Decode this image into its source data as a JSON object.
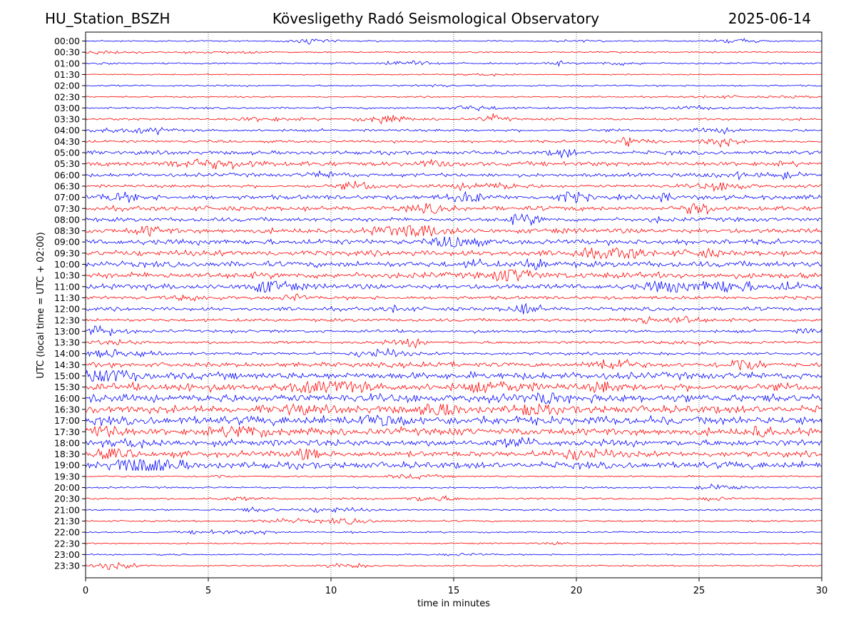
{
  "header": {
    "station": "HU_Station_BSZH",
    "title": "Kövesligethy Radó Seismological Observatory",
    "date": "2025-06-14"
  },
  "colors": {
    "even_trace": "#0000ff",
    "odd_trace": "#ff0000",
    "grid": "#000000",
    "background": "#ffffff"
  },
  "chart_data": {
    "type": "line",
    "title": "Kövesligethy Radó Seismological Observatory",
    "xlabel": "time in minutes",
    "ylabel": "UTC (local time = UTC + 02:00)",
    "xlim": [
      0,
      30
    ],
    "xticks": [
      0,
      5,
      10,
      15,
      20,
      25,
      30
    ],
    "grid": "vertical dotted lines at x ticks",
    "rows": [
      {
        "label": "00:00",
        "amp": 0.5
      },
      {
        "label": "00:30",
        "amp": 0.5
      },
      {
        "label": "01:00",
        "amp": 0.6
      },
      {
        "label": "01:30",
        "amp": 0.4
      },
      {
        "label": "02:00",
        "amp": 0.6
      },
      {
        "label": "02:30",
        "amp": 0.5
      },
      {
        "label": "03:00",
        "amp": 0.7
      },
      {
        "label": "03:30",
        "amp": 0.8
      },
      {
        "label": "04:00",
        "amp": 0.9
      },
      {
        "label": "04:30",
        "amp": 0.9
      },
      {
        "label": "05:00",
        "amp": 1.3
      },
      {
        "label": "05:30",
        "amp": 1.6
      },
      {
        "label": "06:00",
        "amp": 1.3
      },
      {
        "label": "06:30",
        "amp": 1.1
      },
      {
        "label": "07:00",
        "amp": 1.6
      },
      {
        "label": "07:30",
        "amp": 1.6
      },
      {
        "label": "08:00",
        "amp": 1.4
      },
      {
        "label": "08:30",
        "amp": 1.7
      },
      {
        "label": "09:00",
        "amp": 1.8
      },
      {
        "label": "09:30",
        "amp": 1.9
      },
      {
        "label": "10:00",
        "amp": 2.0
      },
      {
        "label": "10:30",
        "amp": 2.1
      },
      {
        "label": "11:00",
        "amp": 1.8
      },
      {
        "label": "11:30",
        "amp": 1.2
      },
      {
        "label": "12:00",
        "amp": 1.3
      },
      {
        "label": "12:30",
        "amp": 1.1
      },
      {
        "label": "13:00",
        "amp": 1.0
      },
      {
        "label": "13:30",
        "amp": 1.0
      },
      {
        "label": "14:00",
        "amp": 1.0
      },
      {
        "label": "14:30",
        "amp": 1.6
      },
      {
        "label": "15:00",
        "amp": 2.4
      },
      {
        "label": "15:30",
        "amp": 2.5
      },
      {
        "label": "16:00",
        "amp": 2.8
      },
      {
        "label": "16:30",
        "amp": 2.7
      },
      {
        "label": "17:00",
        "amp": 2.9
      },
      {
        "label": "17:30",
        "amp": 2.5
      },
      {
        "label": "18:00",
        "amp": 2.2
      },
      {
        "label": "18:30",
        "amp": 2.0
      },
      {
        "label": "19:00",
        "amp": 2.3
      },
      {
        "label": "19:30",
        "amp": 0.6
      },
      {
        "label": "20:00",
        "amp": 0.6
      },
      {
        "label": "20:30",
        "amp": 0.7
      },
      {
        "label": "21:00",
        "amp": 0.6
      },
      {
        "label": "21:30",
        "amp": 0.6
      },
      {
        "label": "22:00",
        "amp": 0.5
      },
      {
        "label": "22:30",
        "amp": 0.5
      },
      {
        "label": "23:00",
        "amp": 0.5
      },
      {
        "label": "23:30",
        "amp": 0.5
      }
    ]
  }
}
